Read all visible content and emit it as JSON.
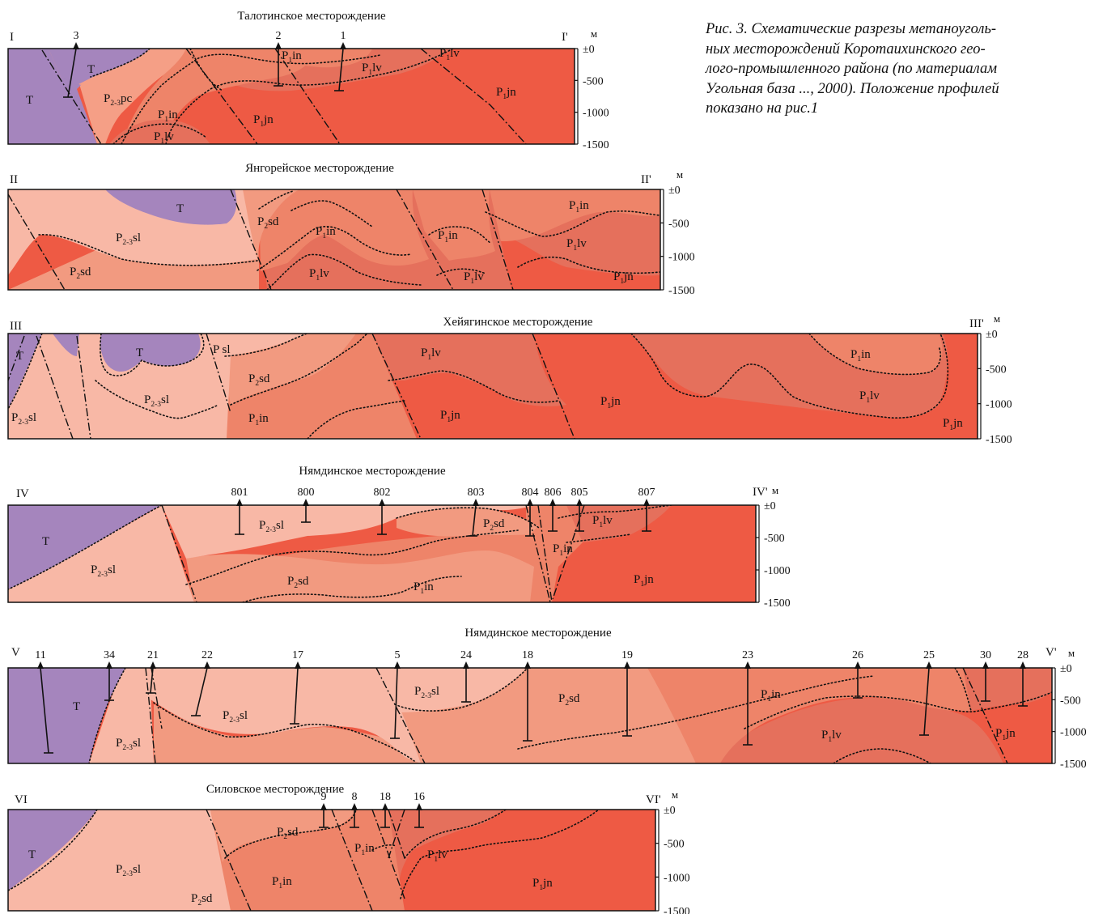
{
  "caption": [
    "Рис. 3. Схематические разрезы метаноуголь-",
    "ных месторождений Коротаихинского гео-",
    "лого-промышленного района (по материалам",
    "Угольная база ..., 2000). Положение профилей",
    "показано на рис.1"
  ],
  "colors": {
    "T": "#a585bd",
    "P23sl": "#f8b8a6",
    "P23pc": "#f59f86",
    "P2sd": "#f29a80",
    "P1in": "#ee8469",
    "P1lv": "#e5705c",
    "P1jn": "#ee5a44",
    "outline": "#111111"
  },
  "unit_label": "м",
  "sections": [
    {
      "id": "I",
      "title": "Талотинское месторождение",
      "left_label": "I",
      "right_label": "I'",
      "ticks": [
        "±0",
        "-500",
        "-1000",
        "-1500"
      ],
      "labels": [
        {
          "main": "T",
          "sub": ""
        },
        {
          "main": "T",
          "sub": ""
        },
        {
          "main": "P",
          "sub": "2-3",
          "tail": "pc"
        },
        {
          "main": "P",
          "sub": "1",
          "tail": "in"
        },
        {
          "main": "P",
          "sub": "1",
          "tail": "lv"
        },
        {
          "main": "P",
          "sub": "1",
          "tail": "in"
        },
        {
          "main": "P",
          "sub": "1",
          "tail": "lv"
        },
        {
          "main": "P",
          "sub": "1",
          "tail": "jn"
        },
        {
          "main": "P",
          "sub": "1",
          "tail": "lv"
        },
        {
          "main": "P",
          "sub": "1",
          "tail": "jn"
        }
      ],
      "wells": [
        "3",
        "2",
        "1"
      ]
    },
    {
      "id": "II",
      "title": "Янгорейское месторождение",
      "left_label": "II",
      "right_label": "II'",
      "ticks": [
        "±0",
        "-500",
        "-1000",
        "-1500"
      ],
      "labels": [
        {
          "main": "T",
          "sub": ""
        },
        {
          "main": "P",
          "sub": "2-3",
          "tail": "sl"
        },
        {
          "main": "P",
          "sub": "2",
          "tail": "sd"
        },
        {
          "main": "P",
          "sub": "2",
          "tail": "sd"
        },
        {
          "main": "P",
          "sub": "1",
          "tail": "in"
        },
        {
          "main": "P",
          "sub": "1",
          "tail": "lv"
        },
        {
          "main": "P",
          "sub": "1",
          "tail": "in"
        },
        {
          "main": "P",
          "sub": "1",
          "tail": "lv"
        },
        {
          "main": "P",
          "sub": "1",
          "tail": "in"
        },
        {
          "main": "P",
          "sub": "1",
          "tail": "lv"
        },
        {
          "main": "P",
          "sub": "1",
          "tail": "jn"
        }
      ],
      "wells": []
    },
    {
      "id": "III",
      "title": "Хейягинское месторождение",
      "left_label": "III",
      "right_label": "III'",
      "ticks": [
        "±0",
        "-500",
        "-1000",
        "-1500"
      ],
      "labels": [
        {
          "main": "T",
          "sub": ""
        },
        {
          "main": "T",
          "sub": ""
        },
        {
          "main": "P",
          "sub": "2-3",
          "tail": "sl"
        },
        {
          "main": "P",
          "sub": "2-3",
          "tail": "sl"
        },
        {
          "main": "P sl",
          "sub": ""
        },
        {
          "main": "P",
          "sub": "2",
          "tail": "sd"
        },
        {
          "main": "P",
          "sub": "1",
          "tail": "in"
        },
        {
          "main": "P",
          "sub": "1",
          "tail": "lv"
        },
        {
          "main": "P",
          "sub": "1",
          "tail": "jn"
        },
        {
          "main": "P",
          "sub": "1",
          "tail": "jn"
        },
        {
          "main": "P",
          "sub": "1",
          "tail": "in"
        },
        {
          "main": "P",
          "sub": "1",
          "tail": "lv"
        },
        {
          "main": "P",
          "sub": "1",
          "tail": "jn"
        }
      ],
      "wells": []
    },
    {
      "id": "IV",
      "title": "Нямдинское месторождение",
      "left_label": "IV",
      "right_label": "IV'",
      "ticks": [
        "±0",
        "-500",
        "-1000",
        "-1500"
      ],
      "labels": [
        {
          "main": "T",
          "sub": ""
        },
        {
          "main": "P",
          "sub": "2-3",
          "tail": "sl"
        },
        {
          "main": "P",
          "sub": "2-3",
          "tail": "sl"
        },
        {
          "main": "P",
          "sub": "2",
          "tail": "sd"
        },
        {
          "main": "P",
          "sub": "2",
          "tail": "sd"
        },
        {
          "main": "P",
          "sub": "1",
          "tail": "in"
        },
        {
          "main": "P",
          "sub": "1",
          "tail": "in"
        },
        {
          "main": "P",
          "sub": "1",
          "tail": "lv"
        },
        {
          "main": "P",
          "sub": "1",
          "tail": "jn"
        }
      ],
      "wells": [
        "801",
        "800",
        "802",
        "803",
        "804",
        "806",
        "805",
        "807"
      ]
    },
    {
      "id": "V",
      "title": "Нямдинское месторождение",
      "left_label": "V",
      "right_label": "V'",
      "ticks": [
        "±0",
        "-500",
        "-1000",
        "-1500"
      ],
      "labels": [
        {
          "main": "T",
          "sub": ""
        },
        {
          "main": "P",
          "sub": "2-3",
          "tail": "sl"
        },
        {
          "main": "P",
          "sub": "2-3",
          "tail": "sl"
        },
        {
          "main": "P",
          "sub": "2-3",
          "tail": "sl"
        },
        {
          "main": "P",
          "sub": "2",
          "tail": "sd"
        },
        {
          "main": "P",
          "sub": "1",
          "tail": "in"
        },
        {
          "main": "P",
          "sub": "1",
          "tail": "lv"
        },
        {
          "main": "P",
          "sub": "1",
          "tail": "jn"
        }
      ],
      "wells": [
        "11",
        "34",
        "21",
        "22",
        "17",
        "5",
        "24",
        "18",
        "19",
        "23",
        "26",
        "25",
        "30",
        "28"
      ]
    },
    {
      "id": "VI",
      "title": "Силовское месторождение",
      "left_label": "VI",
      "right_label": "VI'",
      "ticks": [
        "±0",
        "-500",
        "-1000",
        "-1500"
      ],
      "labels": [
        {
          "main": "T",
          "sub": ""
        },
        {
          "main": "P",
          "sub": "2-3",
          "tail": "sl"
        },
        {
          "main": "P",
          "sub": "2",
          "tail": "sd"
        },
        {
          "main": "P",
          "sub": "2",
          "tail": "sd"
        },
        {
          "main": "P",
          "sub": "1",
          "tail": "in"
        },
        {
          "main": "P",
          "sub": "1",
          "tail": "in"
        },
        {
          "main": "P",
          "sub": "1",
          "tail": "lv"
        },
        {
          "main": "P",
          "sub": "1",
          "tail": "jn"
        }
      ],
      "wells": [
        "9",
        "8",
        "18",
        "16"
      ]
    }
  ]
}
